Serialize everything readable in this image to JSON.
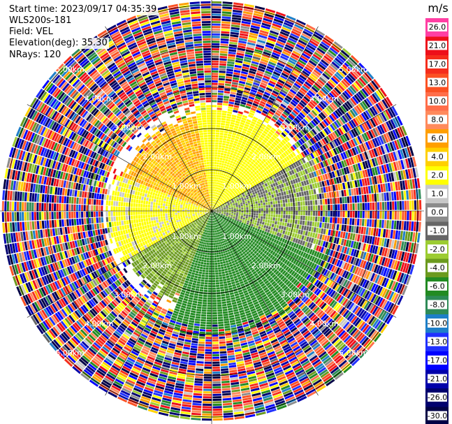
{
  "header": {
    "start_time": "Start time: 2023/09/17 04:35:39",
    "instrument": "WLS200s-181",
    "field": "Field: VEL",
    "elevation": "Elevation(deg): 35.30",
    "nrays": "NRays: 120"
  },
  "colorbar": {
    "unit": "m/s",
    "ticks": [
      "26.0",
      "21.0",
      "17.0",
      "13.0",
      "10.0",
      "8.0",
      "6.0",
      "4.0",
      "2.0",
      "1.0",
      "0.0",
      "-1.0",
      "-2.0",
      "-4.0",
      "-6.0",
      "-8.0",
      "-10.0",
      "-13.0",
      "-17.0",
      "-21.0",
      "-26.0",
      "-30.0"
    ],
    "colors": [
      "#ff3fa3",
      "#ee0f1a",
      "#f52d1c",
      "#fb5123",
      "#ff6e4a",
      "#ff8a5c",
      "#ff9f00",
      "#ffd000",
      "#ffff00",
      "#c8c8c8",
      "#8c8c8c",
      "#666666",
      "#9ccc32",
      "#6b9a1e",
      "#228b22",
      "#2e8b57",
      "#1e7fc8",
      "#2030ff",
      "#0000ff",
      "#0000aa",
      "#00006e",
      "#000045"
    ]
  },
  "chart_data": {
    "type": "heatmap",
    "plot_kind": "PPI polar sector scan",
    "field": "VEL",
    "units": "m/s",
    "nrays": 120,
    "range_rings_km": [
      1.0,
      2.0,
      3.0,
      4.0,
      5.0
    ],
    "ring_labels": [
      "1.00km",
      "2.00km",
      "3.00km",
      "4.00km",
      "5.00km"
    ],
    "max_range_km": 5.1,
    "color_range": [
      -30.0,
      26.0
    ],
    "regions": [
      {
        "azimuth_from": 290,
        "azimuth_to": 350,
        "range_from": 0.0,
        "range_to": 2.2,
        "velocity": 6.0
      },
      {
        "azimuth_from": 350,
        "azimuth_to": 60,
        "range_from": 0.0,
        "range_to": 2.4,
        "velocity": 3.0
      },
      {
        "azimuth_from": 240,
        "azimuth_to": 290,
        "range_from": 0.0,
        "range_to": 2.4,
        "velocity": 2.5
      },
      {
        "azimuth_from": 60,
        "azimuth_to": 110,
        "range_from": 0.0,
        "range_to": 2.6,
        "velocity": -1.0
      },
      {
        "azimuth_from": 110,
        "azimuth_to": 200,
        "range_from": 0.0,
        "range_to": 2.8,
        "velocity": -5.0
      },
      {
        "azimuth_from": 200,
        "azimuth_to": 240,
        "range_from": 0.0,
        "range_to": 2.2,
        "velocity": -2.5
      }
    ],
    "noise_beyond_km": 2.6
  }
}
